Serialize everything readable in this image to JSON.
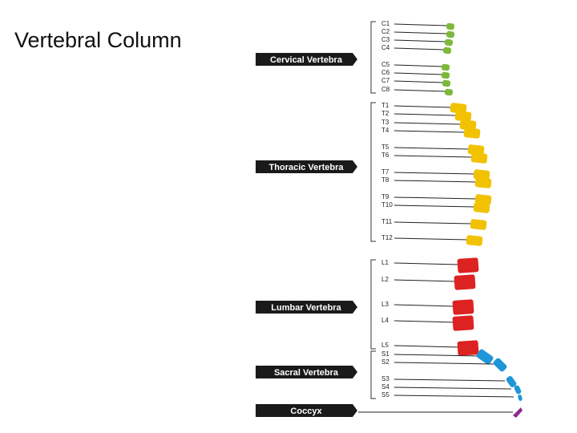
{
  "title": "Vertebral Column",
  "groups": [
    {
      "label": "Cervical Vertebra",
      "vertebrae": [
        "C1",
        "C2",
        "C3",
        "C4",
        "C5",
        "C6",
        "C7",
        "C8"
      ]
    },
    {
      "label": "Thoracic Vertebra",
      "vertebrae": [
        "T1",
        "T2",
        "T3",
        "T4",
        "T5",
        "T6",
        "T7",
        "T8",
        "T9",
        "T10",
        "T11",
        "T12"
      ]
    },
    {
      "label": "Lumbar Vertebra",
      "vertebrae": [
        "L1",
        "L2",
        "L3",
        "L4",
        "L5"
      ]
    },
    {
      "label": "Sacral Vertebra",
      "vertebrae": [
        "S1",
        "S2",
        "S3",
        "S4",
        "S5"
      ]
    },
    {
      "label": "Coccyx",
      "vertebrae": []
    }
  ]
}
